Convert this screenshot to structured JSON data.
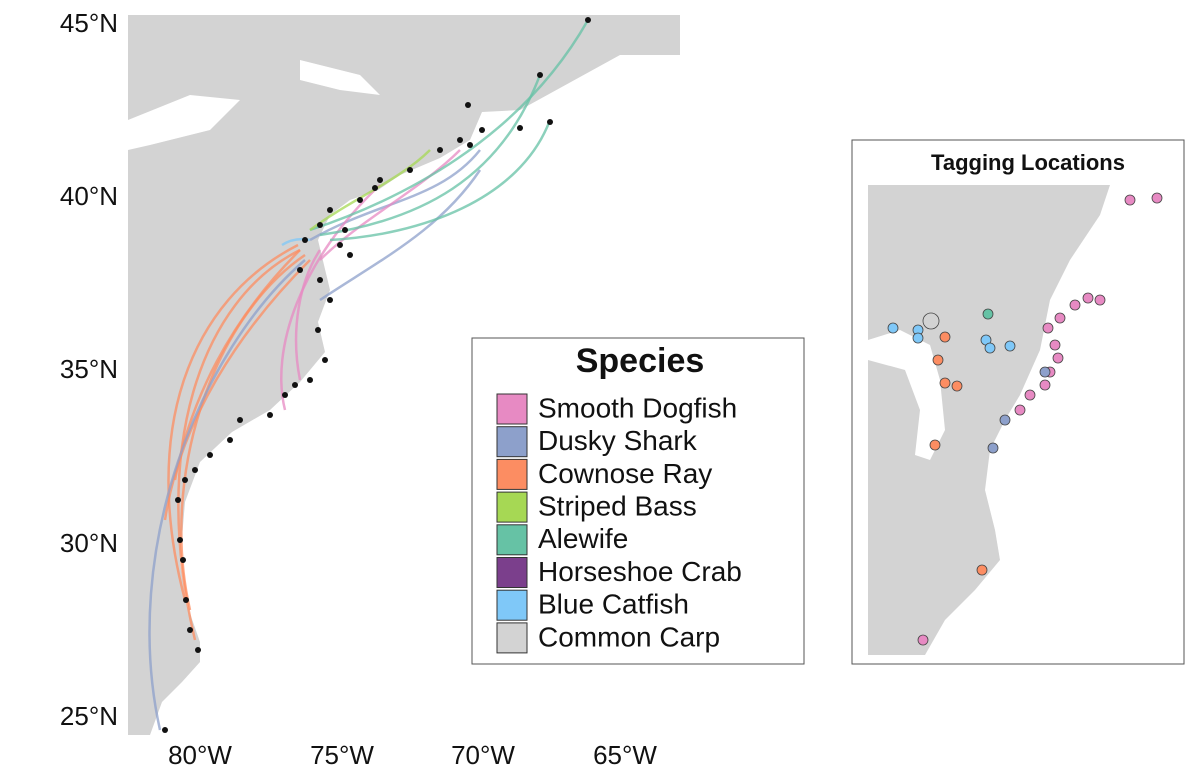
{
  "map": {
    "y_axis_labels": [
      "45°N",
      "40°N",
      "35°N",
      "30°N",
      "25°N"
    ],
    "x_axis_labels": [
      "80°W",
      "75°W",
      "70°W",
      "65°W"
    ]
  },
  "legend": {
    "title": "Species",
    "items": [
      {
        "name": "Smooth Dogfish",
        "color": "#e78ac3"
      },
      {
        "name": "Dusky Shark",
        "color": "#8da0cb"
      },
      {
        "name": "Cownose Ray",
        "color": "#fc8d62"
      },
      {
        "name": "Striped Bass",
        "color": "#a6d854"
      },
      {
        "name": "Alewife",
        "color": "#66c2a5"
      },
      {
        "name": "Horseshoe Crab",
        "color": "#7b3f8c"
      },
      {
        "name": "Blue Catfish",
        "color": "#7fc8f8"
      },
      {
        "name": "Common Carp",
        "color": "#d3d3d3"
      }
    ]
  },
  "inset": {
    "title": "Tagging Locations"
  }
}
